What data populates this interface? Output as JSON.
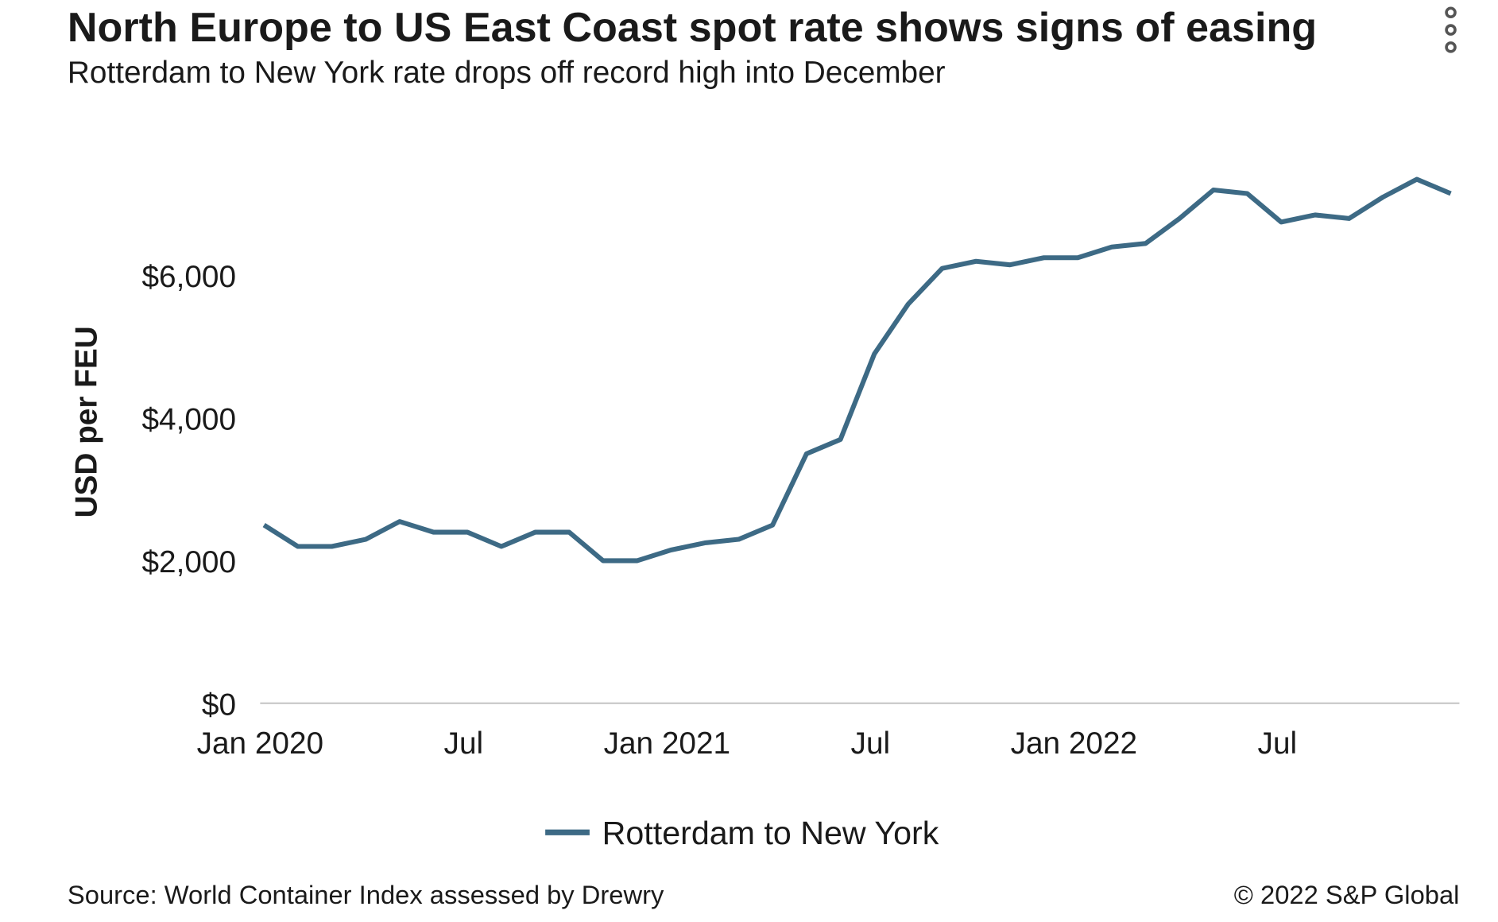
{
  "chart_data": {
    "type": "line",
    "title": "North Europe to US East Coast spot rate shows signs of easing",
    "subtitle": "Rotterdam to New York rate drops off record high into December",
    "y_label": "USD per FEU",
    "x": [
      "2020-01",
      "2020-02",
      "2020-03",
      "2020-04",
      "2020-05",
      "2020-06",
      "2020-07",
      "2020-08",
      "2020-09",
      "2020-10",
      "2020-11",
      "2020-12",
      "2021-01",
      "2021-02",
      "2021-03",
      "2021-04",
      "2021-05",
      "2021-06",
      "2021-07",
      "2021-08",
      "2021-09",
      "2021-10",
      "2021-11",
      "2021-12",
      "2022-01",
      "2022-02",
      "2022-03",
      "2022-04",
      "2022-05",
      "2022-06",
      "2022-07",
      "2022-08",
      "2022-09",
      "2022-10",
      "2022-11",
      "2022-12"
    ],
    "series": [
      {
        "name": "Rotterdam to New York",
        "color": "#3d6a85",
        "values": [
          2500,
          2200,
          2200,
          2300,
          2550,
          2400,
          2400,
          2200,
          2400,
          2400,
          2000,
          2000,
          2150,
          2250,
          2300,
          2500,
          3500,
          3700,
          4900,
          5600,
          6100,
          6200,
          6150,
          6250,
          6250,
          6400,
          6450,
          6800,
          7200,
          7150,
          6750,
          6850,
          6800,
          7100,
          7350,
          7150
        ]
      }
    ],
    "xticks": [
      {
        "value": "2020-01",
        "label": "Jan 2020"
      },
      {
        "value": "2020-07",
        "label": "Jul"
      },
      {
        "value": "2021-01",
        "label": "Jan 2021"
      },
      {
        "value": "2021-07",
        "label": "Jul"
      },
      {
        "value": "2022-01",
        "label": "Jan 2022"
      },
      {
        "value": "2022-07",
        "label": "Jul"
      }
    ],
    "ylim": [
      0,
      8000
    ],
    "yticks": [
      {
        "value": 0,
        "label": "$0"
      },
      {
        "value": 2000,
        "label": "$2,000"
      },
      {
        "value": 4000,
        "label": "$4,000"
      },
      {
        "value": 6000,
        "label": "$6,000"
      }
    ],
    "legend": "bottom",
    "source": "Source: World Container Index assessed by Drewry",
    "copyright": "© 2022 S&P Global"
  }
}
